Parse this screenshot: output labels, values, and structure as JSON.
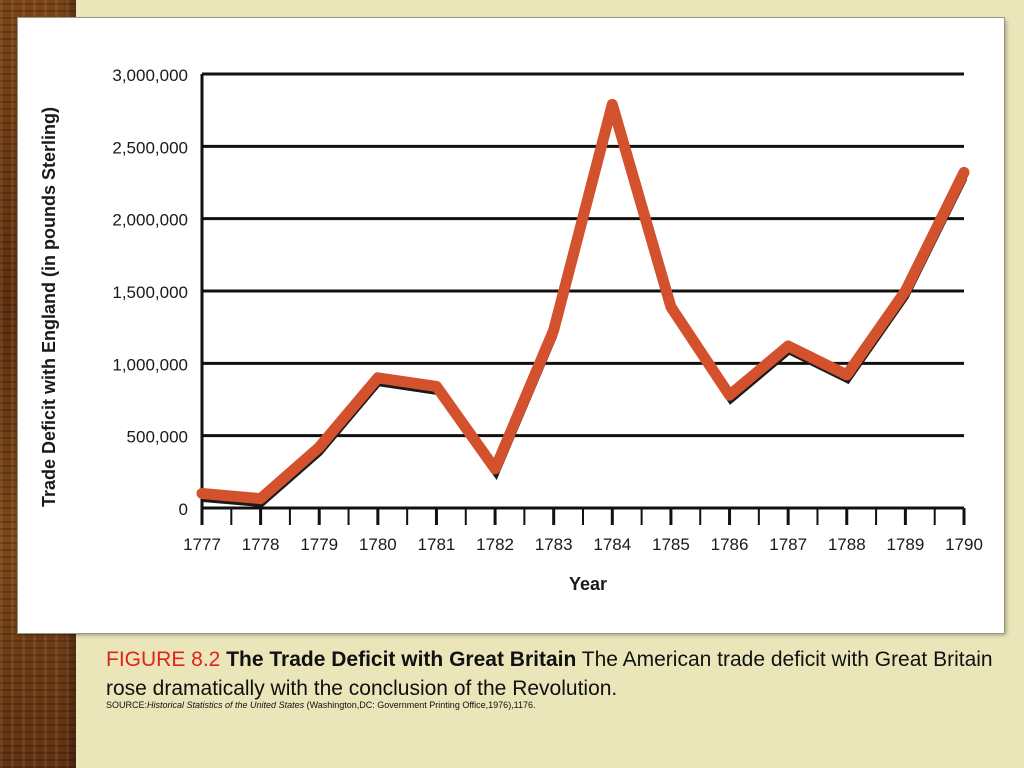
{
  "caption": {
    "figure_number": "FIGURE 8.2",
    "figure_title": "The Trade Deficit with Great Britain",
    "description": "The American trade deficit with Great Britain rose dramatically with the conclusion of the Revolution.",
    "source_prefix": "SOURCE:",
    "source_title": "Historical Statistics of the United States",
    "source_rest": " (Washington,DC: Government Printing Office,1976),1176."
  },
  "chart_data": {
    "type": "line",
    "title": "",
    "xlabel": "Year",
    "ylabel": "Trade Deficit with England (in pounds Sterling)",
    "x": [
      "1777",
      "1778",
      "1779",
      "1780",
      "1781",
      "1782",
      "1783",
      "1784",
      "1785",
      "1786",
      "1787",
      "1788",
      "1789",
      "1790"
    ],
    "series": [
      {
        "values": [
          100000,
          65000,
          420000,
          900000,
          840000,
          270000,
          1230000,
          2790000,
          1390000,
          780000,
          1120000,
          920000,
          1500000,
          2320000
        ]
      }
    ],
    "ylim": [
      0,
      3000000
    ],
    "yticks": [
      "0",
      "500,000",
      "1,000,000",
      "1,500,000",
      "2,000,000",
      "2,500,000",
      "3,000,000"
    ],
    "ytick_values": [
      0,
      500000,
      1000000,
      1500000,
      2000000,
      2500000,
      3000000
    ],
    "grid": true,
    "line_color": "#d4512d",
    "shadow_color": "#1a1a1a"
  }
}
